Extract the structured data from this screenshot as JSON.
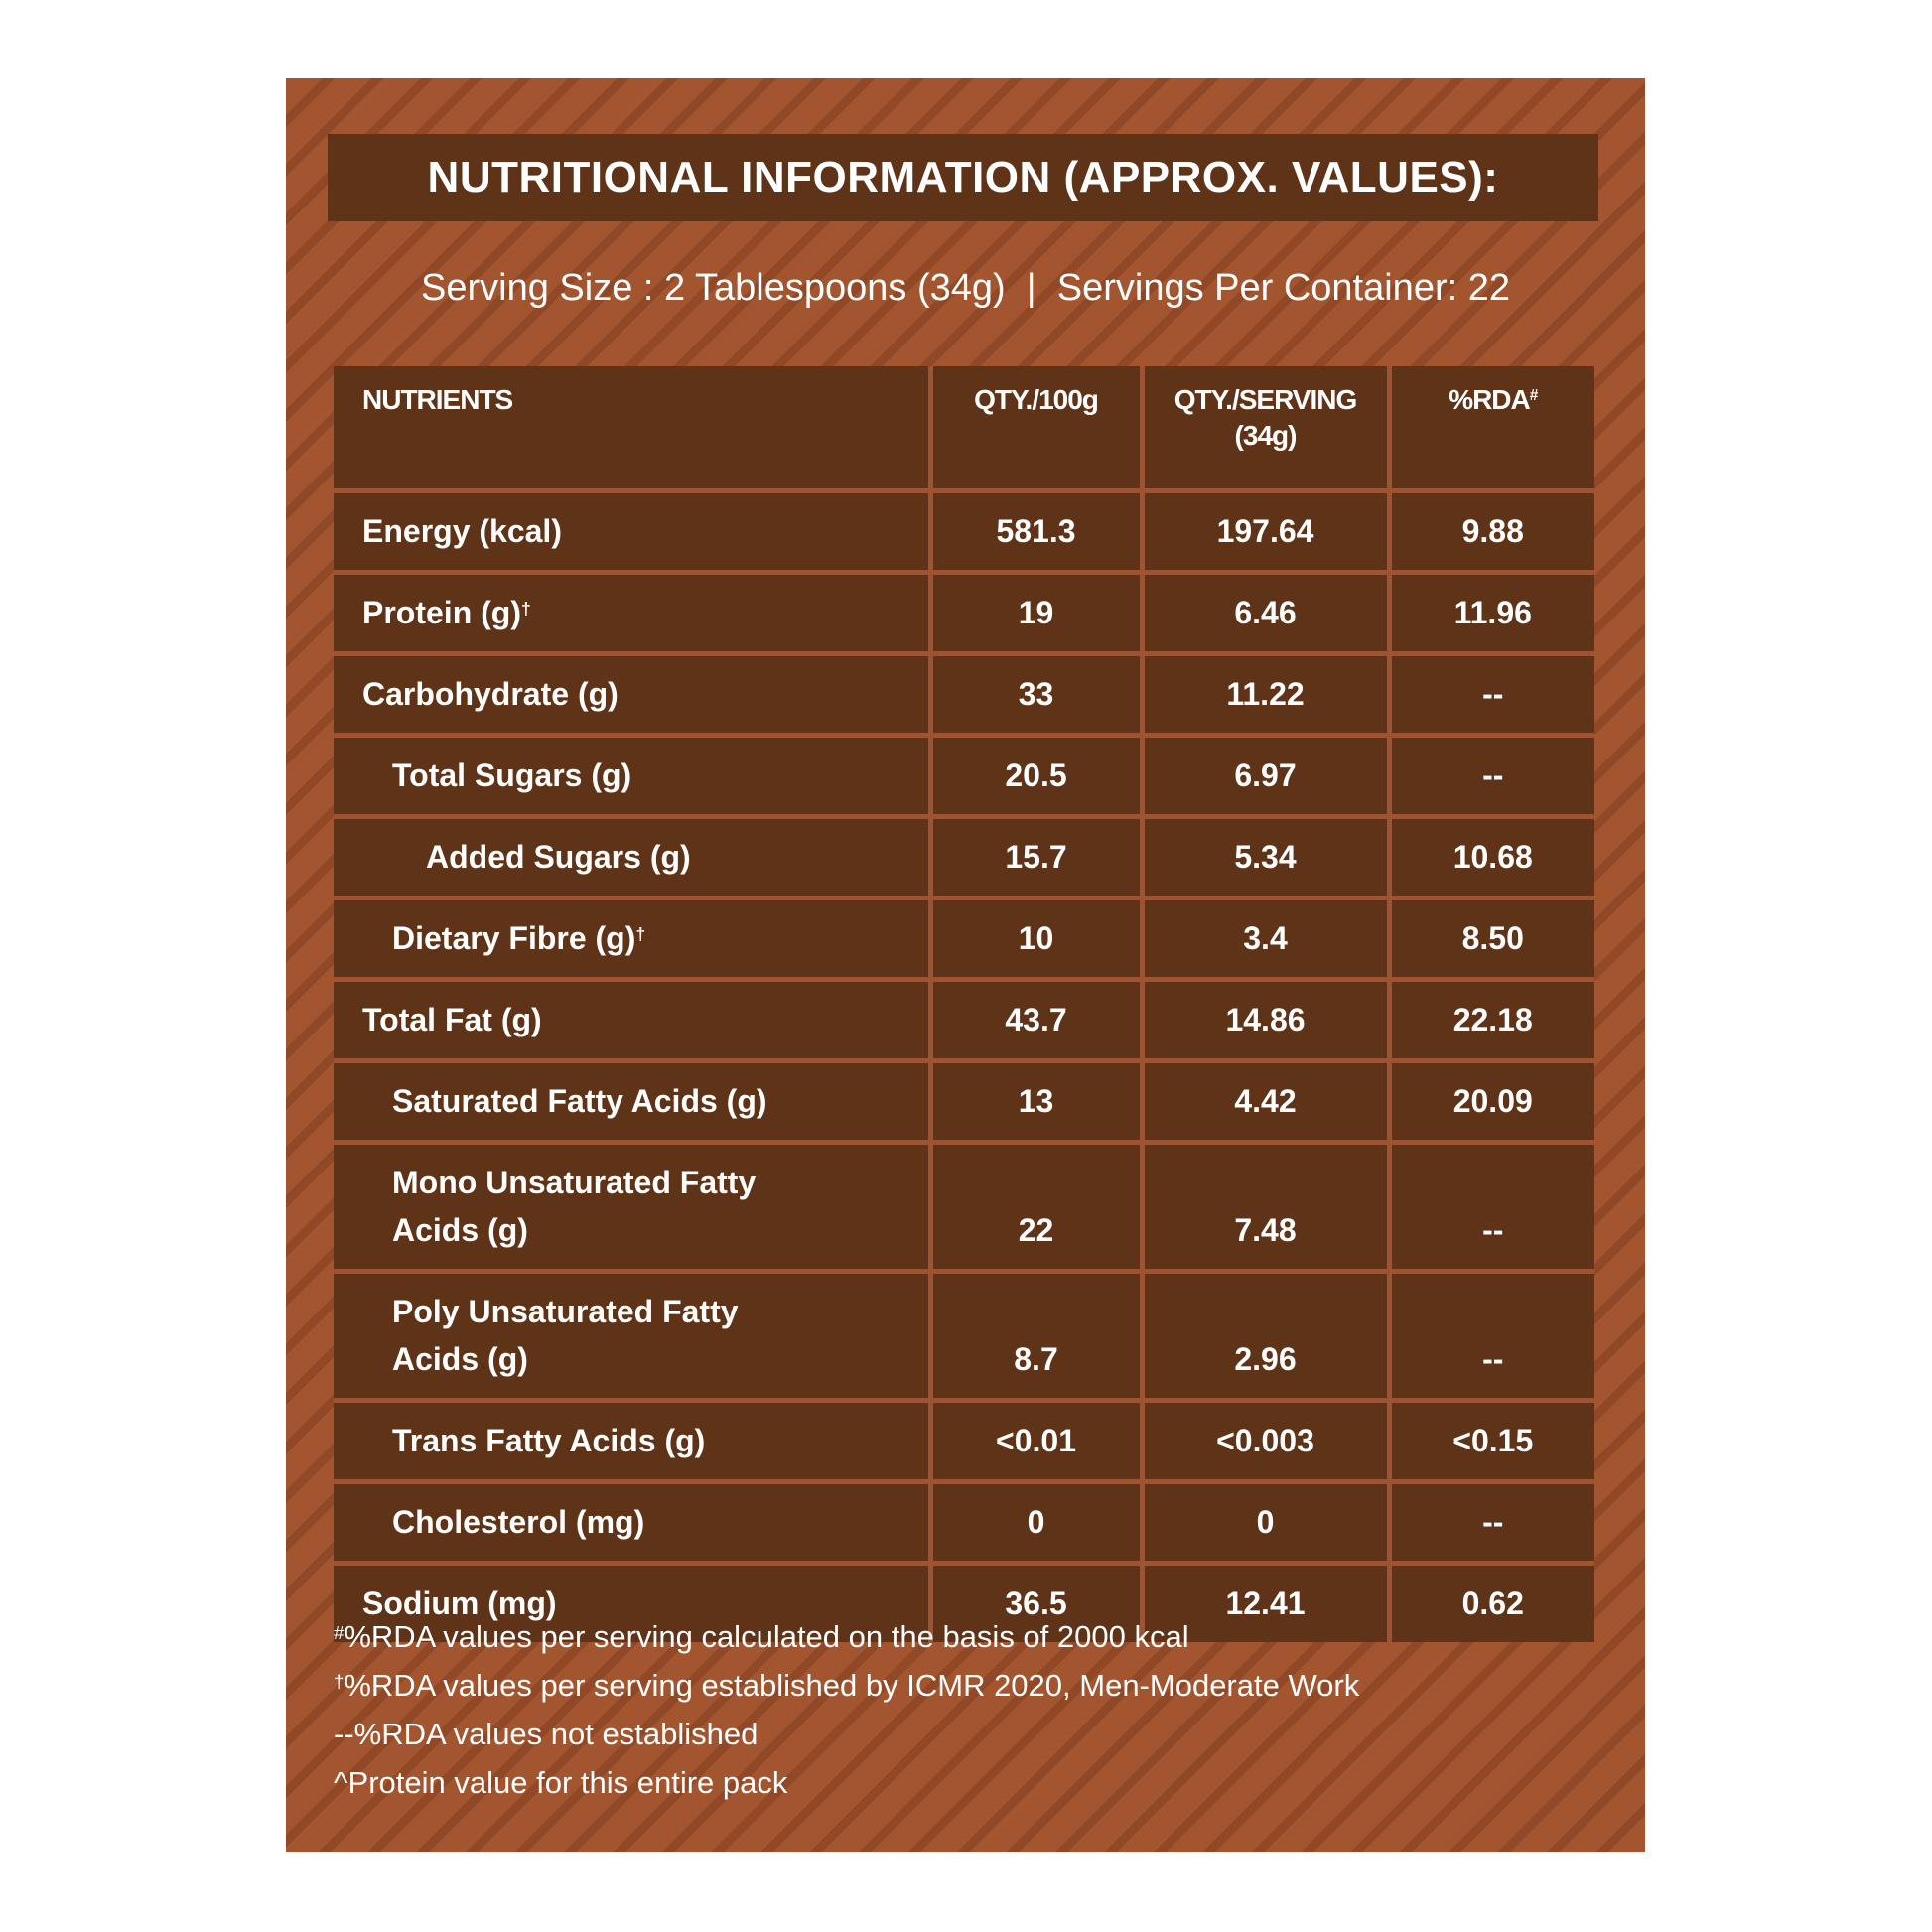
{
  "title": "NUTRITIONAL INFORMATION (APPROX. VALUES):",
  "serving": "Serving Size : 2 Tablespoons (34g)  |  Servings Per Container: 22",
  "table": {
    "header": [
      {
        "lines": [
          "NUTRIENTS"
        ]
      },
      {
        "lines": [
          "QTY./100g"
        ]
      },
      {
        "lines": [
          "QTY./SERVING",
          "(34g)"
        ]
      },
      {
        "lines": [
          "%RDA"
        ],
        "mark": "#"
      }
    ],
    "rows": [
      {
        "nutrient": [
          "Energy (kcal)"
        ],
        "level": 0,
        "per_100g": "581.3",
        "per_serving": "197.64",
        "rda": "9.88"
      },
      {
        "nutrient": [
          "Protein (g)"
        ],
        "mark": "†",
        "level": 0,
        "per_100g": "19",
        "per_serving": "6.46",
        "rda": "11.96"
      },
      {
        "nutrient": [
          "Carbohydrate (g)"
        ],
        "level": 0,
        "per_100g": "33",
        "per_serving": "11.22",
        "rda": "--"
      },
      {
        "nutrient": [
          "Total Sugars (g)"
        ],
        "level": 1,
        "per_100g": "20.5",
        "per_serving": "6.97",
        "rda": "--"
      },
      {
        "nutrient": [
          "Added Sugars (g)"
        ],
        "level": 2,
        "per_100g": "15.7",
        "per_serving": "5.34",
        "rda": "10.68"
      },
      {
        "nutrient": [
          "Dietary Fibre (g)"
        ],
        "mark": "†",
        "level": 1,
        "per_100g": "10",
        "per_serving": "3.4",
        "rda": "8.50"
      },
      {
        "nutrient": [
          "Total Fat (g)"
        ],
        "level": 0,
        "per_100g": "43.7",
        "per_serving": "14.86",
        "rda": "22.18"
      },
      {
        "nutrient": [
          "Saturated Fatty Acids (g)"
        ],
        "level": 1,
        "per_100g": "13",
        "per_serving": "4.42",
        "rda": "20.09"
      },
      {
        "nutrient": [
          "Mono Unsaturated Fatty",
          "Acids (g)"
        ],
        "level": 1,
        "per_100g": "22",
        "per_serving": "7.48",
        "rda": "--"
      },
      {
        "nutrient": [
          "Poly Unsaturated Fatty",
          "Acids (g)"
        ],
        "level": 1,
        "per_100g": "8.7",
        "per_serving": "2.96",
        "rda": "--"
      },
      {
        "nutrient": [
          "Trans Fatty Acids (g)"
        ],
        "level": 1,
        "per_100g": "<0.01",
        "per_serving": "<0.003",
        "rda": "<0.15"
      },
      {
        "nutrient": [
          "Cholesterol (mg)"
        ],
        "level": 1,
        "per_100g": "0",
        "per_serving": "0",
        "rda": "--"
      },
      {
        "nutrient": [
          "Sodium (mg)"
        ],
        "level": 0,
        "per_100g": "36.5",
        "per_serving": "12.41",
        "rda": "0.62"
      }
    ]
  },
  "footnotes": [
    {
      "mark": "#",
      "text": "%RDA values per serving calculated on the basis of 2000 kcal"
    },
    {
      "mark": "†",
      "text": "%RDA values per serving established by ICMR 2020, Men-Moderate Work"
    },
    {
      "text": "--%RDA values not established"
    },
    {
      "text": "^Protein value for this entire pack"
    }
  ]
}
